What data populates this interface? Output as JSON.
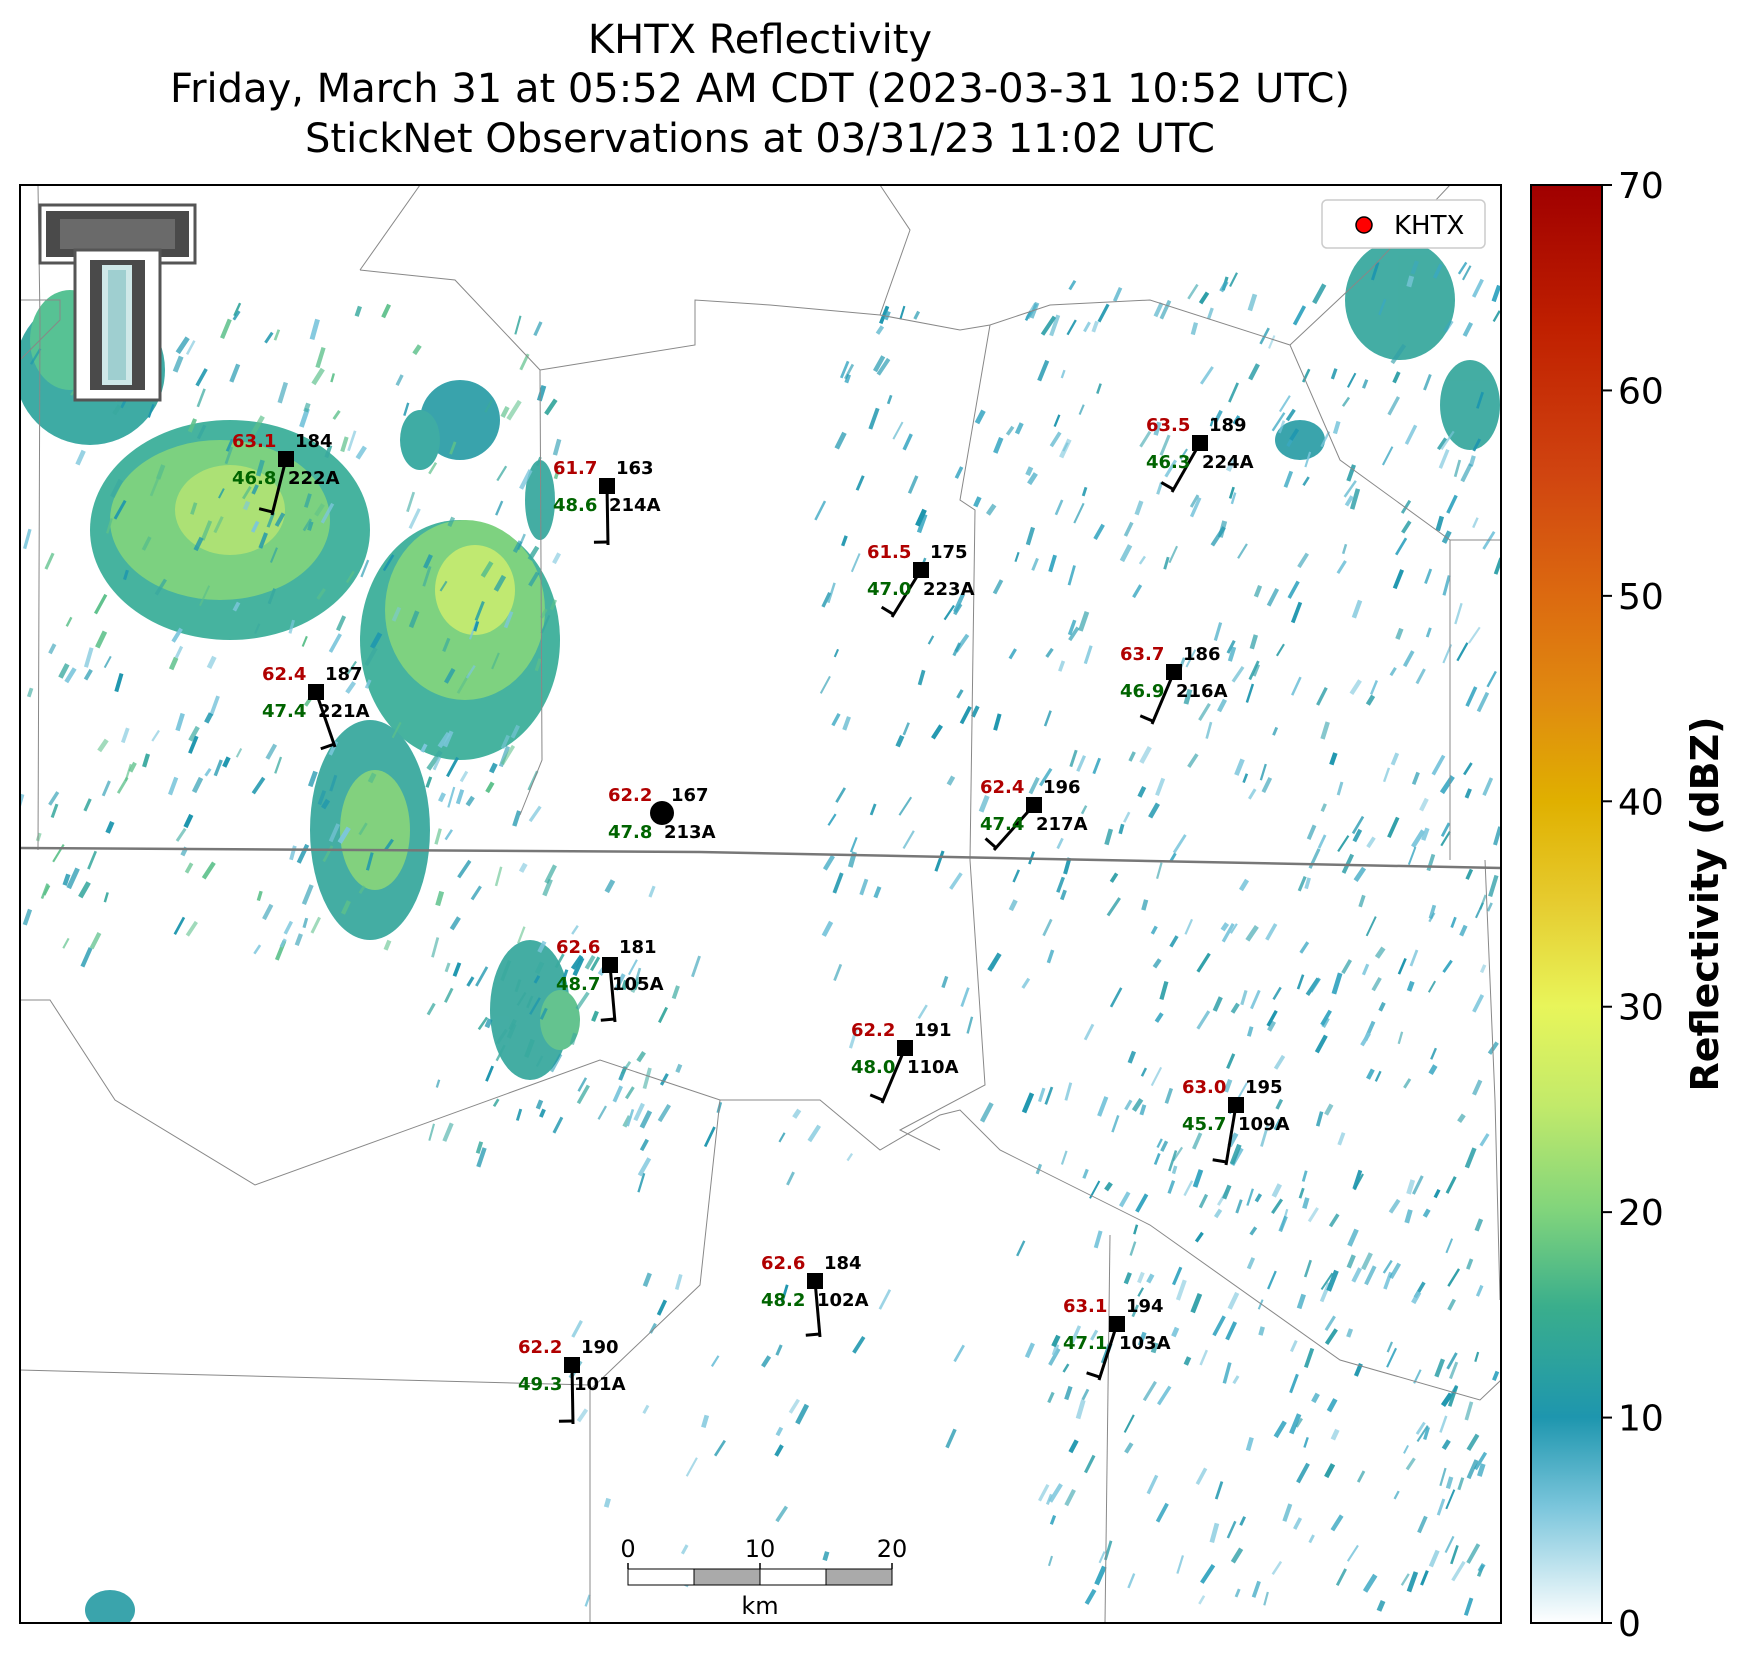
{
  "title": {
    "line1": "KHTX Reflectivity",
    "line2": "Friday, March 31 at 05:52 AM CDT (2023-03-31 10:52 UTC)",
    "line3": "StickNet Observations at 03/31/23 11:02 UTC"
  },
  "legend": {
    "label": "KHTX",
    "marker_color": "#ff0000"
  },
  "colorbar": {
    "label": "Reflectivity (dBZ)",
    "ticks": [
      "0",
      "10",
      "20",
      "30",
      "40",
      "50",
      "60",
      "70"
    ],
    "colors": [
      "#ffffff",
      "#1e90a8",
      "#7fd67f",
      "#e6f55a",
      "#e0b800",
      "#e07a10",
      "#d03010",
      "#a00000"
    ]
  },
  "scalebar": {
    "ticks": [
      "0",
      "10",
      "20"
    ],
    "unit": "km"
  },
  "logo": {
    "name": "texas-tech-double-t-logo"
  },
  "stations": [
    {
      "id": "222A",
      "temp": "63.1",
      "dew": "46.8",
      "dir": "184"
    },
    {
      "id": "214A",
      "temp": "61.7",
      "dew": "48.6",
      "dir": "163"
    },
    {
      "id": "223A",
      "temp": "61.5",
      "dew": "47.0",
      "dir": "175"
    },
    {
      "id": "224A",
      "temp": "63.5",
      "dew": "46.3",
      "dir": "189"
    },
    {
      "id": "221A",
      "temp": "62.4",
      "dew": "47.4",
      "dir": "187"
    },
    {
      "id": "216A",
      "temp": "63.7",
      "dew": "46.9",
      "dir": "186"
    },
    {
      "id": "213A",
      "temp": "62.2",
      "dew": "47.8",
      "dir": "167"
    },
    {
      "id": "217A",
      "temp": "62.4",
      "dew": "47.4",
      "dir": "196"
    },
    {
      "id": "105A",
      "temp": "62.6",
      "dew": "48.7",
      "dir": "181"
    },
    {
      "id": "110A",
      "temp": "62.2",
      "dew": "48.0",
      "dir": "191"
    },
    {
      "id": "109A",
      "temp": "63.0",
      "dew": "45.7",
      "dir": "195"
    },
    {
      "id": "102A",
      "temp": "62.6",
      "dew": "48.2",
      "dir": "184"
    },
    {
      "id": "103A",
      "temp": "63.1",
      "dew": "47.1",
      "dir": "194"
    },
    {
      "id": "101A",
      "temp": "62.2",
      "dew": "49.3",
      "dir": "190"
    }
  ]
}
